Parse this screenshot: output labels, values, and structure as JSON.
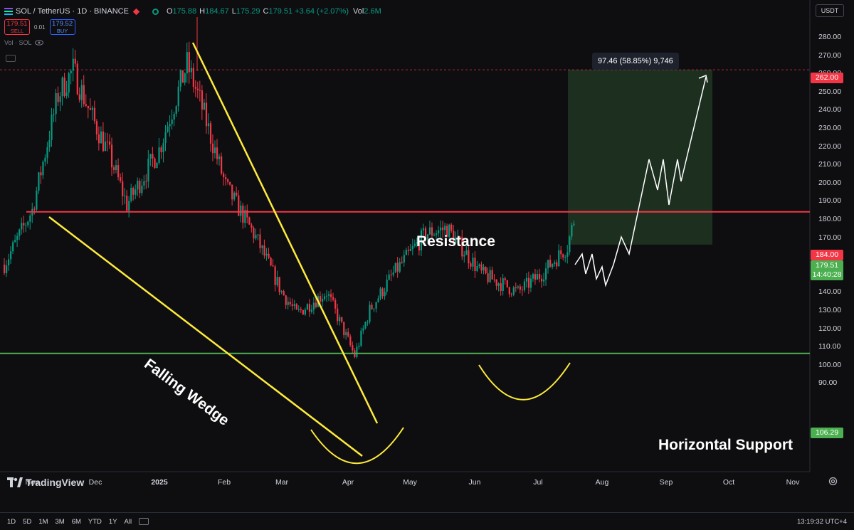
{
  "legend": {
    "symbol": "SOL / TetherUS · 1D · BINANCE",
    "open_k": "O",
    "open": "175.88",
    "high_k": "H",
    "high": "184.67",
    "low_k": "L",
    "low": "175.29",
    "close_k": "C",
    "close": "179.51",
    "change": "+3.64 (+2.07%)",
    "vol_k": "Vol",
    "vol": "2.6M"
  },
  "trade": {
    "sell_price": "179.51",
    "sell_label": "SELL",
    "spread": "0.01",
    "buy_price": "179.52",
    "buy_label": "BUY"
  },
  "volume_label": "Vol · SOL",
  "currency": "USDT",
  "price_axis": [
    "280.00",
    "270.00",
    "260.00",
    "250.00",
    "240.00",
    "230.00",
    "220.00",
    "210.00",
    "200.00",
    "190.00",
    "180.00",
    "170.00",
    "160.00",
    "150.00",
    "140.00",
    "130.00",
    "120.00",
    "110.00",
    "100.00",
    "90.00"
  ],
  "time_axis": [
    {
      "label": "Nov",
      "bold": false
    },
    {
      "label": "Dec",
      "bold": false
    },
    {
      "label": "2025",
      "bold": true
    },
    {
      "label": "Feb",
      "bold": false
    },
    {
      "label": "Mar",
      "bold": false
    },
    {
      "label": "Apr",
      "bold": false
    },
    {
      "label": "May",
      "bold": false
    },
    {
      "label": "Jun",
      "bold": false
    },
    {
      "label": "Jul",
      "bold": false
    },
    {
      "label": "Aug",
      "bold": false
    },
    {
      "label": "Sep",
      "bold": false
    },
    {
      "label": "Oct",
      "bold": false
    },
    {
      "label": "Nov",
      "bold": false
    }
  ],
  "tags": {
    "resistance": "184.00",
    "support": "106.29",
    "target": "262.00",
    "current_price": "179.51",
    "countdown": "14:40:28"
  },
  "measure": "97.46 (58.85%) 9,746",
  "annotations": {
    "resistance": "Resistance",
    "support": "Horizontal Support",
    "wedge": "Falling Wedge"
  },
  "logo": "TradingView",
  "ranges": [
    "1D",
    "5D",
    "1M",
    "3M",
    "6M",
    "YTD",
    "1Y",
    "All"
  ],
  "clock": "13:19:32 UTC+4",
  "colors": {
    "up": "#089981",
    "down": "#f23645",
    "resistance": "#f23645",
    "support": "#4caf50",
    "wedge": "#ffeb3b",
    "target_box": "#1f3322"
  },
  "chart_data": {
    "type": "candlestick",
    "symbol": "SOL / TetherUS",
    "interval": "1D",
    "ylim": [
      85,
      287
    ],
    "x_range": [
      "Oct 26",
      "Nov 30 (next year)"
    ],
    "levels": {
      "resistance": 184.0,
      "support": 106.29,
      "target": 262.0
    },
    "approx_closes": [
      [
        "Oct 26",
        155
      ],
      [
        "Nov 8",
        185
      ],
      [
        "Nov 20",
        248
      ],
      [
        "Nov 27",
        262
      ],
      [
        "Dec 5",
        238
      ],
      [
        "Dec 14",
        215
      ],
      [
        "Dec 22",
        188
      ],
      [
        "Jan 6",
        218
      ],
      [
        "Jan 19",
        265
      ],
      [
        "Jan 25",
        245
      ],
      [
        "Feb 6",
        198
      ],
      [
        "Feb 20",
        170
      ],
      [
        "Mar 4",
        140
      ],
      [
        "Mar 11",
        128
      ],
      [
        "Mar 25",
        140
      ],
      [
        "Apr 7",
        105
      ],
      [
        "Apr 14",
        130
      ],
      [
        "Apr 25",
        150
      ],
      [
        "May 10",
        172
      ],
      [
        "May 20",
        175
      ],
      [
        "Jun 5",
        150
      ],
      [
        "Jun 22",
        140
      ],
      [
        "Jul 3",
        150
      ],
      [
        "Jul 15",
        165
      ],
      [
        "Jul 18",
        179.51
      ]
    ],
    "target_zone": {
      "from": "Jul 18",
      "to": "Sep 25",
      "low": 166,
      "high": 262,
      "change": "97.46 (58.85%) 9,746"
    }
  }
}
